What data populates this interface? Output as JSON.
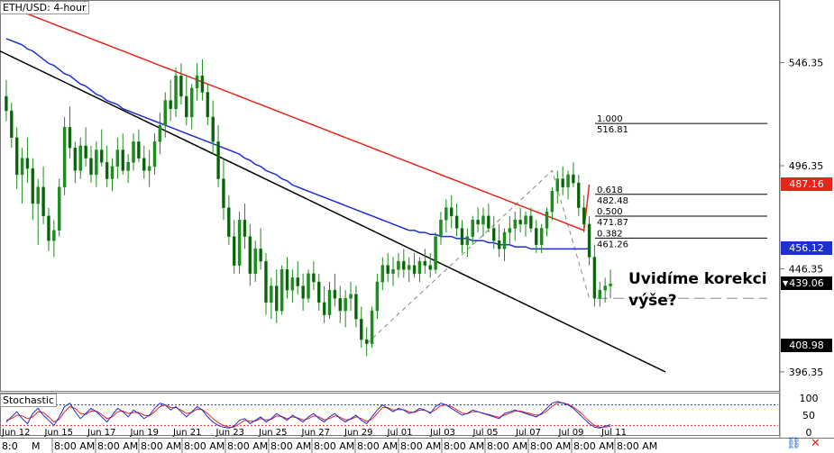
{
  "window": {
    "symbol_label": "ETH/USD: 4-hour",
    "indicator_label": "Stochastic",
    "annotation_line1": "Uvidíme korekci",
    "annotation_line2": "výše?",
    "x_first_label": "8:0",
    "x_second_label": "M",
    "current_price_marker": "▼"
  },
  "colors": {
    "candle": "#1e8c1e",
    "ma_fast": "#1f2fd0",
    "ma_slow": "#e8251b",
    "trendline": "#000000",
    "fib_line": "#000000",
    "red_tag": "#e8251b",
    "blue_tag": "#1f2fd0",
    "black_tag": "#000000",
    "stoch_k": "#1f2fd0",
    "stoch_d": "#e8251b",
    "stoch_level_top": "#1f2fd0",
    "stoch_level_bottom": "#e8251b"
  },
  "icons": {
    "link": "link-icon",
    "close": "close-icon"
  },
  "chart_data": {
    "type": "candlestick",
    "title": "ETH/USD: 4-hour",
    "ylim": [
      388,
      575
    ],
    "y_ticks": [
      "546.35",
      "496.35",
      "446.35",
      "396.35"
    ],
    "x_ticks": [
      "Jun 12",
      "Jun 15",
      "Jun 17",
      "Jun 19",
      "Jun 21",
      "Jun 23",
      "Jun 25",
      "Jun 27",
      "Jun 29",
      "Jul 01",
      "Jul 03",
      "Jul 05",
      "Jul 07",
      "Jul 09",
      "Jul 11"
    ],
    "x_time_labels": [
      "8:00 AM",
      "8:00 AM",
      "8:00 AM",
      "8:00 AM",
      "8:00 AM",
      "8:00 AM",
      "8:00 AM",
      "8:00 AM",
      "8:00 AM",
      "8:00 AM",
      "8:00 AM",
      "8:00 AM",
      "8:00 AM",
      "8:00 AM"
    ],
    "price_tags": [
      {
        "label": "487.16",
        "value": 487.16,
        "color": "red"
      },
      {
        "label": "456.12",
        "value": 456.12,
        "color": "blue"
      },
      {
        "label": "439.06",
        "value": 439.06,
        "color": "black"
      },
      {
        "label": "408.98",
        "value": 408.98,
        "color": "black"
      }
    ],
    "fibonacci": {
      "levels": [
        {
          "ratio": "1.000",
          "price": "516.81",
          "value": 516.81
        },
        {
          "ratio": "0.618",
          "price": "482.48",
          "value": 482.48
        },
        {
          "ratio": "0.500",
          "price": "471.87",
          "value": 471.87
        },
        {
          "ratio": "0.382",
          "price": "461.26",
          "value": 461.26
        }
      ]
    },
    "series": [
      {
        "name": "",
        "kind": "ohlc",
        "values": [
          [
            530,
            538,
            518,
            523
          ],
          [
            523,
            527,
            505,
            510
          ],
          [
            510,
            515,
            485,
            492
          ],
          [
            492,
            505,
            478,
            500
          ],
          [
            500,
            510,
            488,
            495
          ],
          [
            495,
            500,
            470,
            478
          ],
          [
            478,
            490,
            458,
            486
          ],
          [
            486,
            496,
            468,
            472
          ],
          [
            472,
            476,
            455,
            460
          ],
          [
            460,
            470,
            452,
            465
          ],
          [
            465,
            490,
            462,
            486
          ],
          [
            486,
            520,
            482,
            515
          ],
          [
            515,
            525,
            500,
            505
          ],
          [
            505,
            508,
            488,
            494
          ],
          [
            494,
            510,
            490,
            506
          ],
          [
            506,
            515,
            496,
            500
          ],
          [
            500,
            506,
            488,
            492
          ],
          [
            492,
            508,
            486,
            504
          ],
          [
            504,
            514,
            496,
            498
          ],
          [
            498,
            506,
            486,
            490
          ],
          [
            490,
            500,
            484,
            496
          ],
          [
            496,
            510,
            490,
            504
          ],
          [
            504,
            512,
            492,
            494
          ],
          [
            494,
            502,
            488,
            498
          ],
          [
            498,
            512,
            494,
            508
          ],
          [
            508,
            514,
            498,
            500
          ],
          [
            500,
            506,
            490,
            494
          ],
          [
            494,
            504,
            486,
            496
          ],
          [
            496,
            512,
            492,
            508
          ],
          [
            508,
            522,
            502,
            516
          ],
          [
            516,
            532,
            510,
            528
          ],
          [
            528,
            538,
            518,
            524
          ],
          [
            524,
            544,
            520,
            540
          ],
          [
            540,
            546,
            526,
            530
          ],
          [
            530,
            540,
            516,
            520
          ],
          [
            520,
            536,
            514,
            534
          ],
          [
            534,
            546,
            528,
            540
          ],
          [
            540,
            548,
            528,
            532
          ],
          [
            532,
            536,
            516,
            520
          ],
          [
            520,
            528,
            502,
            508
          ],
          [
            508,
            516,
            486,
            490
          ],
          [
            490,
            500,
            470,
            476
          ],
          [
            476,
            482,
            458,
            462
          ],
          [
            462,
            470,
            444,
            448
          ],
          [
            448,
            474,
            444,
            470
          ],
          [
            470,
            478,
            456,
            462
          ],
          [
            462,
            468,
            438,
            444
          ],
          [
            444,
            460,
            440,
            456
          ],
          [
            456,
            466,
            446,
            450
          ],
          [
            450,
            454,
            424,
            430
          ],
          [
            430,
            442,
            422,
            438
          ],
          [
            438,
            446,
            420,
            426
          ],
          [
            426,
            448,
            424,
            446
          ],
          [
            446,
            452,
            432,
            436
          ],
          [
            436,
            446,
            430,
            442
          ],
          [
            442,
            450,
            434,
            438
          ],
          [
            438,
            444,
            426,
            432
          ],
          [
            432,
            446,
            430,
            444
          ],
          [
            444,
            450,
            436,
            440
          ],
          [
            440,
            444,
            426,
            430
          ],
          [
            430,
            438,
            420,
            424
          ],
          [
            424,
            440,
            422,
            436
          ],
          [
            436,
            444,
            428,
            432
          ],
          [
            432,
            438,
            420,
            426
          ],
          [
            426,
            436,
            418,
            432
          ],
          [
            432,
            440,
            426,
            434
          ],
          [
            434,
            438,
            418,
            422
          ],
          [
            422,
            428,
            408,
            412
          ],
          [
            412,
            418,
            404,
            410
          ],
          [
            410,
            428,
            408,
            426
          ],
          [
            426,
            444,
            422,
            440
          ],
          [
            440,
            452,
            436,
            448
          ],
          [
            448,
            454,
            440,
            444
          ],
          [
            444,
            452,
            438,
            446
          ],
          [
            446,
            454,
            442,
            450
          ],
          [
            450,
            456,
            442,
            446
          ],
          [
            446,
            452,
            440,
            448
          ],
          [
            448,
            454,
            442,
            444
          ],
          [
            444,
            452,
            440,
            450
          ],
          [
            450,
            456,
            444,
            448
          ],
          [
            448,
            454,
            442,
            446
          ],
          [
            446,
            464,
            444,
            462
          ],
          [
            462,
            474,
            458,
            470
          ],
          [
            470,
            480,
            464,
            476
          ],
          [
            476,
            482,
            466,
            472
          ],
          [
            472,
            478,
            462,
            466
          ],
          [
            466,
            470,
            454,
            458
          ],
          [
            458,
            466,
            452,
            462
          ],
          [
            462,
            472,
            458,
            470
          ],
          [
            470,
            476,
            464,
            468
          ],
          [
            468,
            476,
            462,
            472
          ],
          [
            472,
            478,
            464,
            466
          ],
          [
            466,
            472,
            456,
            460
          ],
          [
            460,
            468,
            452,
            456
          ],
          [
            456,
            466,
            450,
            464
          ],
          [
            464,
            472,
            458,
            466
          ],
          [
            466,
            474,
            460,
            470
          ],
          [
            470,
            476,
            464,
            468
          ],
          [
            468,
            474,
            462,
            472
          ],
          [
            472,
            476,
            464,
            466
          ],
          [
            466,
            470,
            454,
            458
          ],
          [
            458,
            468,
            454,
            466
          ],
          [
            466,
            476,
            462,
            474
          ],
          [
            474,
            486,
            470,
            484
          ],
          [
            484,
            494,
            478,
            490
          ],
          [
            490,
            496,
            482,
            486
          ],
          [
            486,
            494,
            480,
            492
          ],
          [
            492,
            498,
            486,
            488
          ],
          [
            488,
            492,
            472,
            476
          ],
          [
            476,
            482,
            464,
            468
          ],
          [
            468,
            472,
            448,
            452
          ],
          [
            452,
            458,
            428,
            432
          ],
          [
            432,
            440,
            428,
            436
          ],
          [
            436,
            442,
            430,
            438
          ],
          [
            438,
            446,
            432,
            439.06
          ]
        ]
      },
      {
        "name": "",
        "kind": "line",
        "values": [
          558,
          557,
          556,
          555,
          553,
          552,
          550,
          548,
          546,
          545,
          543,
          541,
          540,
          538,
          536,
          535,
          533,
          531,
          530,
          528,
          527,
          526,
          524,
          523,
          522,
          521,
          520,
          519,
          518,
          517,
          516,
          515,
          514,
          513,
          512,
          511,
          510,
          509,
          508,
          507,
          506,
          505,
          504,
          503,
          502,
          500,
          499,
          497,
          496,
          494,
          493,
          492,
          490,
          489,
          487,
          486,
          485,
          484,
          483,
          482,
          481,
          480,
          479,
          478,
          477,
          476,
          475,
          474,
          473,
          472,
          471,
          470,
          469,
          468,
          467,
          466,
          465,
          465,
          464,
          464,
          463,
          463,
          462,
          462,
          462,
          461,
          461,
          461,
          460,
          460,
          460,
          459,
          459,
          458,
          458,
          458,
          457,
          457,
          457,
          456,
          456,
          456,
          456,
          456,
          456,
          456,
          456,
          456,
          456,
          456,
          456.12
        ]
      },
      {
        "name": "",
        "kind": "line",
        "values": [
          574,
          573,
          572,
          571,
          570,
          569,
          568,
          567,
          566,
          565,
          564,
          563,
          562,
          561,
          560,
          559,
          558,
          557,
          556,
          555,
          554,
          553,
          552,
          551,
          550,
          549,
          548,
          547,
          546,
          545,
          544,
          543,
          542,
          541,
          540,
          539,
          538,
          537,
          536,
          535,
          534,
          533,
          532,
          531,
          530,
          529,
          528,
          527,
          526,
          525,
          524,
          523,
          522,
          521,
          520,
          519,
          518,
          517,
          516,
          515,
          514,
          513,
          512,
          511,
          510,
          509,
          508,
          507,
          506,
          505,
          504,
          503,
          502,
          501,
          500,
          499,
          498,
          497,
          496,
          495,
          494,
          493,
          492,
          491,
          490,
          489,
          488,
          487,
          486,
          485,
          484,
          483,
          482,
          481,
          480,
          479,
          478,
          477,
          476,
          475,
          474,
          473,
          472,
          471,
          470,
          469,
          468,
          467,
          466,
          465,
          487.16
        ]
      }
    ],
    "stochastic": {
      "label": "Stochastic",
      "y_ticks": [
        "100",
        "50",
        "0"
      ],
      "ylim": [
        0,
        100
      ],
      "levels": [
        80,
        20
      ],
      "k": [
        30,
        45,
        60,
        40,
        25,
        55,
        70,
        50,
        35,
        20,
        45,
        75,
        85,
        60,
        40,
        55,
        70,
        60,
        45,
        30,
        50,
        70,
        60,
        45,
        65,
        55,
        40,
        50,
        70,
        85,
        80,
        65,
        75,
        60,
        45,
        60,
        75,
        65,
        45,
        30,
        20,
        15,
        12,
        18,
        35,
        40,
        25,
        35,
        45,
        30,
        40,
        55,
        45,
        35,
        50,
        40,
        30,
        45,
        55,
        40,
        30,
        45,
        55,
        40,
        30,
        40,
        50,
        35,
        25,
        45,
        65,
        80,
        70,
        60,
        70,
        65,
        55,
        60,
        70,
        65,
        55,
        75,
        85,
        80,
        70,
        60,
        50,
        55,
        65,
        60,
        55,
        50,
        45,
        40,
        55,
        60,
        65,
        60,
        55,
        50,
        45,
        55,
        70,
        85,
        90,
        85,
        80,
        70,
        55,
        40,
        25,
        15,
        12,
        18,
        22
      ],
      "d": [
        35,
        40,
        50,
        48,
        40,
        45,
        60,
        58,
        45,
        30,
        38,
        60,
        75,
        70,
        55,
        52,
        62,
        62,
        52,
        40,
        45,
        60,
        62,
        55,
        58,
        58,
        50,
        48,
        60,
        75,
        80,
        72,
        72,
        65,
        55,
        58,
        68,
        66,
        55,
        40,
        28,
        20,
        15,
        15,
        25,
        35,
        32,
        33,
        40,
        36,
        38,
        48,
        46,
        40,
        45,
        42,
        36,
        40,
        48,
        45,
        36,
        40,
        48,
        44,
        36,
        38,
        45,
        40,
        32,
        38,
        55,
        72,
        72,
        65,
        66,
        66,
        60,
        58,
        65,
        64,
        58,
        66,
        78,
        80,
        75,
        66,
        56,
        54,
        60,
        60,
        56,
        52,
        48,
        44,
        50,
        56,
        62,
        62,
        58,
        54,
        50,
        52,
        62,
        76,
        86,
        86,
        82,
        74,
        62,
        48,
        32,
        20,
        15,
        15,
        18
      ]
    }
  }
}
